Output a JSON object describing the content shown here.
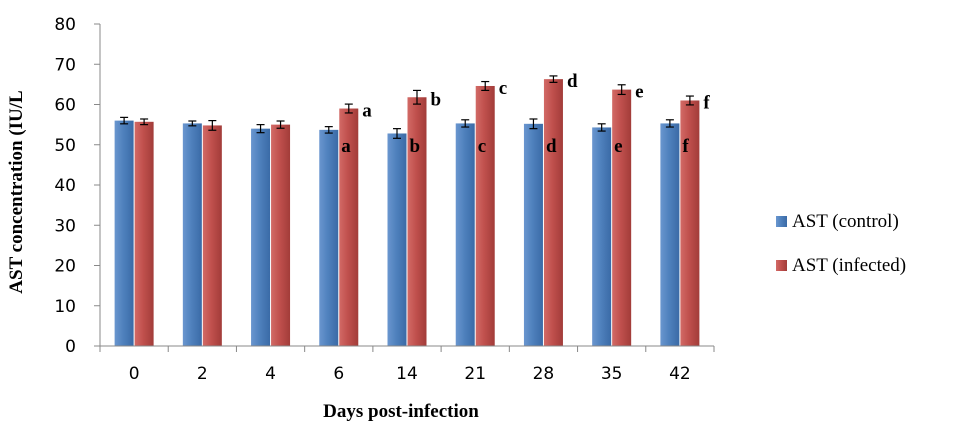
{
  "chart_data": {
    "type": "bar",
    "title": "",
    "xlabel": "Days post-infection",
    "ylabel": "AST concentration (IU/L",
    "ylim": [
      0,
      80
    ],
    "yticks": [
      0,
      10,
      20,
      30,
      40,
      50,
      60,
      70,
      80
    ],
    "grid": false,
    "legend_position": "right",
    "categories": [
      "0",
      "2",
      "4",
      "6",
      "14",
      "21",
      "28",
      "35",
      "42"
    ],
    "series": [
      {
        "name": "AST (control)",
        "color": "#4f81bd",
        "values": [
          56.0,
          55.3,
          54.0,
          53.7,
          52.8,
          55.3,
          55.2,
          54.3,
          55.3
        ],
        "errors": [
          0.8,
          0.6,
          1.0,
          0.8,
          1.2,
          0.9,
          1.2,
          0.9,
          0.9
        ],
        "labels": [
          "",
          "",
          "",
          "a",
          "b",
          "c",
          "d",
          "e",
          "f"
        ]
      },
      {
        "name": "AST (infected)",
        "color": "#c0504d",
        "values": [
          55.7,
          54.8,
          55.0,
          59.0,
          61.8,
          64.6,
          66.3,
          63.7,
          61.0
        ],
        "errors": [
          0.7,
          1.2,
          0.9,
          1.1,
          1.7,
          1.1,
          0.8,
          1.2,
          1.1
        ],
        "labels": [
          "",
          "",
          "",
          "a",
          "b",
          "c",
          "d",
          "e",
          "f"
        ]
      }
    ]
  }
}
